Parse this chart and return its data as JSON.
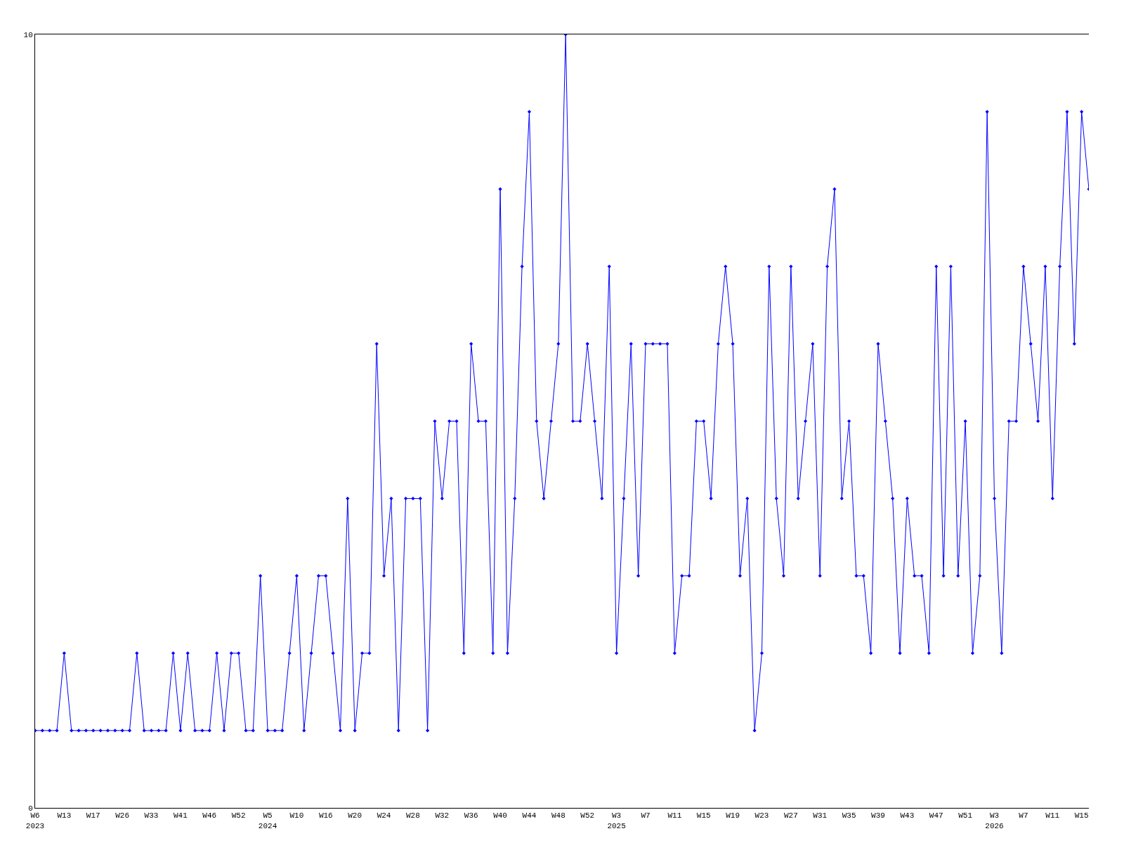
{
  "chart_data": {
    "type": "line",
    "categories": [
      "W6\n2023",
      null,
      null,
      null,
      "W13",
      null,
      null,
      null,
      "W17",
      null,
      null,
      null,
      "W26",
      null,
      null,
      null,
      "W33",
      null,
      null,
      null,
      "W41",
      null,
      null,
      null,
      "W46",
      null,
      null,
      null,
      "W52",
      null,
      null,
      null,
      "W5\n2024",
      null,
      null,
      null,
      "W10",
      null,
      null,
      null,
      "W16",
      null,
      null,
      null,
      "W20",
      null,
      null,
      null,
      "W24",
      null,
      null,
      null,
      "W28",
      null,
      null,
      null,
      "W32",
      null,
      null,
      null,
      "W36",
      null,
      null,
      null,
      "W40",
      null,
      null,
      null,
      "W44",
      null,
      null,
      null,
      "W48",
      null,
      null,
      null,
      "W52",
      null,
      null,
      null,
      "W3\n2025",
      null,
      null,
      null,
      "W7",
      null,
      null,
      null,
      "W11",
      null,
      null,
      null,
      "W15",
      null,
      null,
      null,
      "W19",
      null,
      null,
      null,
      "W23",
      null,
      null,
      null,
      "W27",
      null,
      null,
      null,
      "W31",
      null,
      null,
      null,
      "W35",
      null,
      null,
      null,
      "W39",
      null,
      null,
      null,
      "W43",
      null,
      null,
      null,
      "W47",
      null,
      null,
      null,
      "W51",
      null,
      null,
      null,
      "W3\n2026",
      null,
      null,
      null,
      "W7",
      null,
      null,
      null,
      "W11",
      null,
      null,
      null,
      "W15",
      null
    ],
    "series": [
      {
        "color": "#0000ff",
        "values": [
          1,
          1,
          1,
          1,
          2,
          1,
          1,
          1,
          1,
          1,
          1,
          1,
          1,
          1,
          2,
          1,
          1,
          1,
          1,
          2,
          1,
          2,
          1,
          1,
          1,
          2,
          1,
          2,
          2,
          1,
          1,
          3,
          1,
          1,
          1,
          2,
          3,
          1,
          2,
          3,
          3,
          2,
          1,
          4,
          1,
          2,
          2,
          6,
          3,
          4,
          1,
          4,
          4,
          4,
          1,
          5,
          4,
          5,
          5,
          2,
          6,
          5,
          5,
          2,
          8,
          2,
          4,
          7,
          9,
          5,
          4,
          5,
          6,
          10,
          5,
          5,
          6,
          5,
          4,
          7,
          2,
          4,
          6,
          3,
          6,
          6,
          6,
          6,
          2,
          3,
          3,
          5,
          5,
          4,
          6,
          7,
          6,
          3,
          4,
          1,
          2,
          7,
          4,
          3,
          7,
          4,
          5,
          6,
          3,
          7,
          8,
          4,
          5,
          3,
          3,
          2,
          6,
          5,
          4,
          2,
          4,
          3,
          3,
          2,
          7,
          3,
          7,
          3,
          5,
          2,
          3,
          9,
          4,
          2,
          5,
          5,
          7,
          6,
          5,
          7,
          4,
          7,
          9,
          6,
          9,
          8
        ]
      }
    ],
    "ylim": [
      0,
      10
    ],
    "yticks": [
      0,
      10
    ],
    "legend": false,
    "marker": "diamond",
    "line_style": "solid"
  }
}
